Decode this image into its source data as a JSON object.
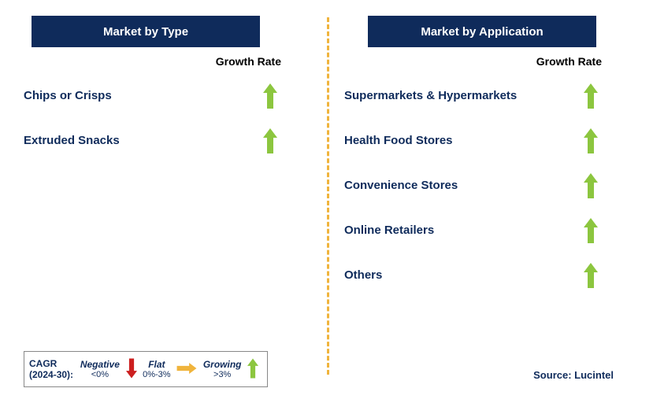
{
  "colors": {
    "header_bg": "#0f2b5b",
    "header_text": "#ffffff",
    "text_dark": "#0f2b5b",
    "growth_label": "#000000",
    "divider": "#f0b43c",
    "arrow_green": "#8cc63f",
    "arrow_red": "#cc1f1f",
    "arrow_yellow": "#f0b43c",
    "legend_border": "#888888",
    "background": "#ffffff"
  },
  "left": {
    "title": "Market by Type",
    "growth_label": "Growth Rate",
    "rows": [
      {
        "label": "Chips or Crisps",
        "indicator": "up"
      },
      {
        "label": "Extruded Snacks",
        "indicator": "up"
      }
    ]
  },
  "right": {
    "title": "Market by Application",
    "growth_label": "Growth Rate",
    "rows": [
      {
        "label": "Supermarkets & Hypermarkets",
        "indicator": "up"
      },
      {
        "label": "Health Food Stores",
        "indicator": "up"
      },
      {
        "label": "Convenience Stores",
        "indicator": "up"
      },
      {
        "label": "Online Retailers",
        "indicator": "up"
      },
      {
        "label": "Others",
        "indicator": "up"
      }
    ]
  },
  "legend": {
    "cagr_line1": "CAGR",
    "cagr_line2": "(2024-30):",
    "items": [
      {
        "word": "Negative",
        "range": "<0%",
        "arrow": "down",
        "color": "#cc1f1f"
      },
      {
        "word": "Flat",
        "range": "0%-3%",
        "arrow": "right",
        "color": "#f0b43c"
      },
      {
        "word": "Growing",
        "range": ">3%",
        "arrow": "up",
        "color": "#8cc63f"
      }
    ]
  },
  "source": "Source: Lucintel",
  "arrow_size": {
    "w": 18,
    "h": 32
  }
}
